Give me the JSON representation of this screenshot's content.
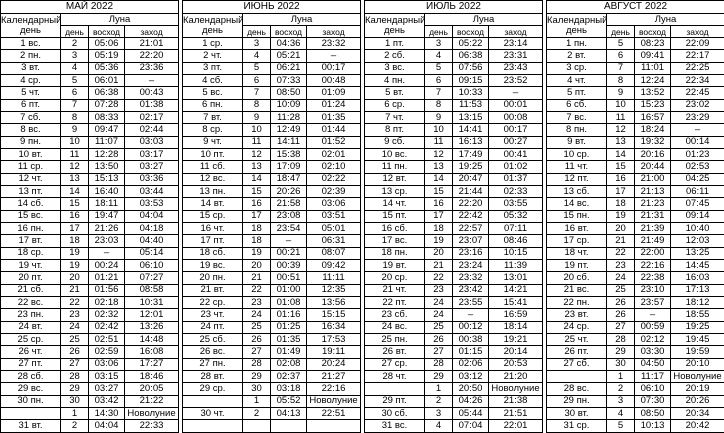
{
  "header": {
    "day": "Календарный день",
    "moon": "Луна",
    "moon_day": "день",
    "rise": "восход",
    "set": "заход"
  },
  "months": [
    {
      "title": "МАЙ 2022",
      "rows": [
        [
          "1 вс.",
          "2",
          "05:06",
          "21:01"
        ],
        [
          "2 пн.",
          "3",
          "05:19",
          "22:20"
        ],
        [
          "3 вт.",
          "4",
          "05:36",
          "23:36"
        ],
        [
          "4 ср.",
          "5",
          "06:01",
          "–"
        ],
        [
          "5 чт.",
          "6",
          "06:38",
          "00:43"
        ],
        [
          "6 пт.",
          "7",
          "07:28",
          "01:38"
        ],
        [
          "7 сб.",
          "8",
          "08:33",
          "02:17"
        ],
        [
          "8 вс.",
          "9",
          "09:47",
          "02:44"
        ],
        [
          "9 пн.",
          "10",
          "11:07",
          "03:03"
        ],
        [
          "10 вт.",
          "11",
          "12:28",
          "03:17"
        ],
        [
          "11 ср.",
          "12",
          "13:50",
          "03:27"
        ],
        [
          "12 чт.",
          "13",
          "15:13",
          "03:36"
        ],
        [
          "13 пт.",
          "14",
          "16:40",
          "03:44"
        ],
        [
          "14 сб.",
          "15",
          "18:11",
          "03:53"
        ],
        [
          "15 вс.",
          "16",
          "19:47",
          "04:04"
        ],
        [
          "16 пн.",
          "17",
          "21:26",
          "04:18"
        ],
        [
          "17 вт.",
          "18",
          "23:03",
          "04:40"
        ],
        [
          "18 ср.",
          "19",
          "–",
          "05:14"
        ],
        [
          "19 чт.",
          "19",
          "00:24",
          "06:10"
        ],
        [
          "20 пт.",
          "20",
          "01:21",
          "07:27"
        ],
        [
          "21 сб.",
          "21",
          "01:56",
          "08:58"
        ],
        [
          "22 вс.",
          "22",
          "02:18",
          "10:31"
        ],
        [
          "23 пн.",
          "23",
          "02:32",
          "12:01"
        ],
        [
          "24 вт.",
          "24",
          "02:42",
          "13:26"
        ],
        [
          "25 ср.",
          "25",
          "02:51",
          "14:48"
        ],
        [
          "26 чт.",
          "26",
          "02:59",
          "16:08"
        ],
        [
          "27 пт.",
          "27",
          "03:06",
          "17:27"
        ],
        [
          "28 сб.",
          "28",
          "03:15",
          "18:46"
        ],
        [
          "29 вс.",
          "29",
          "03:27",
          "20:05"
        ],
        [
          "30 пн.",
          "30",
          "03:42",
          "21:22"
        ],
        [
          null,
          "1",
          "14:30",
          "Новолуние"
        ],
        [
          "31 вт.",
          "2",
          "04:04",
          "22:33"
        ]
      ]
    },
    {
      "title": "ИЮНЬ 2022",
      "rows": [
        [
          "1 ср.",
          "3",
          "04:36",
          "23:32"
        ],
        [
          "2 чт.",
          "4",
          "05:21",
          "–"
        ],
        [
          "3 пт.",
          "5",
          "06:21",
          "00:17"
        ],
        [
          "4 сб.",
          "6",
          "07:33",
          "00:48"
        ],
        [
          "5 вс.",
          "7",
          "08:50",
          "01:09"
        ],
        [
          "6 пн.",
          "8",
          "10:09",
          "01:24"
        ],
        [
          "7 вт.",
          "9",
          "11:28",
          "01:35"
        ],
        [
          "8 ср.",
          "10",
          "12:49",
          "01:44"
        ],
        [
          "9 чт.",
          "11",
          "14:11",
          "01:52"
        ],
        [
          "10 пт.",
          "12",
          "15:38",
          "02:01"
        ],
        [
          "11 сб.",
          "13",
          "17:09",
          "02:10"
        ],
        [
          "12 вс.",
          "14",
          "18:47",
          "02:22"
        ],
        [
          "13 пн.",
          "15",
          "20:26",
          "02:39"
        ],
        [
          "14 вт.",
          "16",
          "21:58",
          "03:06"
        ],
        [
          "15 ср.",
          "17",
          "23:08",
          "03:51"
        ],
        [
          "16 чт.",
          "18",
          "23:54",
          "05:01"
        ],
        [
          "17 пт.",
          "18",
          "–",
          "06:31"
        ],
        [
          "18 сб.",
          "19",
          "00:21",
          "08:07"
        ],
        [
          "19 вс.",
          "20",
          "00:39",
          "09:42"
        ],
        [
          "20 пн.",
          "21",
          "00:51",
          "11:11"
        ],
        [
          "21 вт.",
          "22",
          "01:00",
          "12:35"
        ],
        [
          "22 ср.",
          "23",
          "01:08",
          "13:56"
        ],
        [
          "23 чт.",
          "24",
          "01:16",
          "15:15"
        ],
        [
          "24 пт.",
          "25",
          "01:25",
          "16:34"
        ],
        [
          "25 сб.",
          "26",
          "01:35",
          "17:53"
        ],
        [
          "26 вс.",
          "27",
          "01:49",
          "19:11"
        ],
        [
          "27 пн.",
          "28",
          "02:08",
          "20:24"
        ],
        [
          "28 вт.",
          "29",
          "02:37",
          "21:27"
        ],
        [
          "29 ср.",
          "30",
          "03:18",
          "22:16"
        ],
        [
          null,
          "1",
          "05:52",
          "Новолуние"
        ],
        [
          "30 чт.",
          "2",
          "04:13",
          "22:51"
        ]
      ]
    },
    {
      "title": "ИЮЛЬ 2022",
      "rows": [
        [
          "1 пт.",
          "3",
          "05:22",
          "23:14"
        ],
        [
          "2 сб.",
          "4",
          "06:38",
          "23:31"
        ],
        [
          "3 вс.",
          "5",
          "07:56",
          "23:43"
        ],
        [
          "4 пн.",
          "6",
          "09:15",
          "23:52"
        ],
        [
          "5 вт.",
          "7",
          "10:33",
          "–"
        ],
        [
          "6 ср.",
          "8",
          "11:53",
          "00:01"
        ],
        [
          "7 чт.",
          "9",
          "13:15",
          "00:08"
        ],
        [
          "8 пт.",
          "10",
          "14:41",
          "00:17"
        ],
        [
          "9 сб.",
          "11",
          "16:13",
          "00:27"
        ],
        [
          "10 вс.",
          "12",
          "17:49",
          "00:41"
        ],
        [
          "11 пн.",
          "13",
          "19:25",
          "01:02"
        ],
        [
          "12 вт.",
          "14",
          "20:47",
          "01:37"
        ],
        [
          "13 ср.",
          "15",
          "21:44",
          "02:33"
        ],
        [
          "14 чт.",
          "16",
          "22:20",
          "03:55"
        ],
        [
          "15 пт.",
          "17",
          "22:42",
          "05:32"
        ],
        [
          "16 сб.",
          "18",
          "22:57",
          "07:11"
        ],
        [
          "17 вс.",
          "19",
          "23:07",
          "08:46"
        ],
        [
          "18 пн.",
          "20",
          "23:16",
          "10:15"
        ],
        [
          "19 вт.",
          "21",
          "23:24",
          "11:39"
        ],
        [
          "20 ср.",
          "22",
          "23:32",
          "13:01"
        ],
        [
          "21 чт.",
          "23",
          "23:42",
          "14:21"
        ],
        [
          "22 пт.",
          "24",
          "23:55",
          "15:41"
        ],
        [
          "23 сб.",
          "24",
          "–",
          "16:59"
        ],
        [
          "24 вс.",
          "25",
          "00:12",
          "18:14"
        ],
        [
          "25 пн.",
          "26",
          "00:38",
          "19:21"
        ],
        [
          "26 вт.",
          "27",
          "01:15",
          "20:14"
        ],
        [
          "27 ср.",
          "28",
          "02:06",
          "20:53"
        ],
        [
          "28 чт.",
          "29",
          "03:12",
          "21:20"
        ],
        [
          null,
          "1",
          "20:50",
          "Новолуние"
        ],
        [
          "29 пт.",
          "2",
          "04:26",
          "21:38"
        ],
        [
          "30 сб.",
          "3",
          "05:44",
          "21:51"
        ],
        [
          "31 вс.",
          "4",
          "07:04",
          "22:01"
        ]
      ]
    },
    {
      "title": "АВГУСТ 2022",
      "rows": [
        [
          "1 пн.",
          "5",
          "08:23",
          "22:09"
        ],
        [
          "2 вт.",
          "6",
          "09:41",
          "22:17"
        ],
        [
          "3 ср.",
          "7",
          "11:01",
          "22:25"
        ],
        [
          "4 чт.",
          "8",
          "12:24",
          "22:34"
        ],
        [
          "5 пт.",
          "9",
          "13:52",
          "22:45"
        ],
        [
          "6 сб.",
          "10",
          "15:23",
          "23:02"
        ],
        [
          "7 вс.",
          "11",
          "16:57",
          "23:29"
        ],
        [
          "8 пн.",
          "12",
          "18:24",
          "–"
        ],
        [
          "9 вт.",
          "13",
          "19:32",
          "00:14"
        ],
        [
          "10 ср.",
          "14",
          "20:16",
          "01:23"
        ],
        [
          "11 чт.",
          "15",
          "20:44",
          "02:53"
        ],
        [
          "12 пт.",
          "16",
          "21:00",
          "04:25"
        ],
        [
          "13 сб.",
          "17",
          "21:13",
          "06:11"
        ],
        [
          "14 вс.",
          "18",
          "21:23",
          "07:45"
        ],
        [
          "15 пн.",
          "19",
          "21:31",
          "09:14"
        ],
        [
          "16 вт.",
          "20",
          "21:39",
          "10:40"
        ],
        [
          "17 ср.",
          "21",
          "21:49",
          "12:03"
        ],
        [
          "18 чт.",
          "22",
          "22:00",
          "13:25"
        ],
        [
          "19 пт.",
          "23",
          "22:16",
          "14:45"
        ],
        [
          "20 сб.",
          "24",
          "22:38",
          "16:03"
        ],
        [
          "21 вс.",
          "25",
          "23:10",
          "17:13"
        ],
        [
          "22 пн.",
          "26",
          "23:57",
          "18:12"
        ],
        [
          "23 вт.",
          "26",
          "–",
          "18:55"
        ],
        [
          "24 ср.",
          "27",
          "00:59",
          "19:25"
        ],
        [
          "25 чт.",
          "28",
          "02:12",
          "19:45"
        ],
        [
          "26 пт.",
          "29",
          "03:30",
          "19:59"
        ],
        [
          "27 сб.",
          "30",
          "04:50",
          "20:10"
        ],
        [
          null,
          "1",
          "11:17",
          "Новолуние"
        ],
        [
          "28 вс.",
          "2",
          "06:10",
          "20:19"
        ],
        [
          "29 пн.",
          "3",
          "07:30",
          "20:26"
        ],
        [
          "30 вт.",
          "4",
          "08:50",
          "20:34"
        ],
        [
          "31 ср.",
          "5",
          "10:13",
          "20:42"
        ]
      ]
    }
  ]
}
